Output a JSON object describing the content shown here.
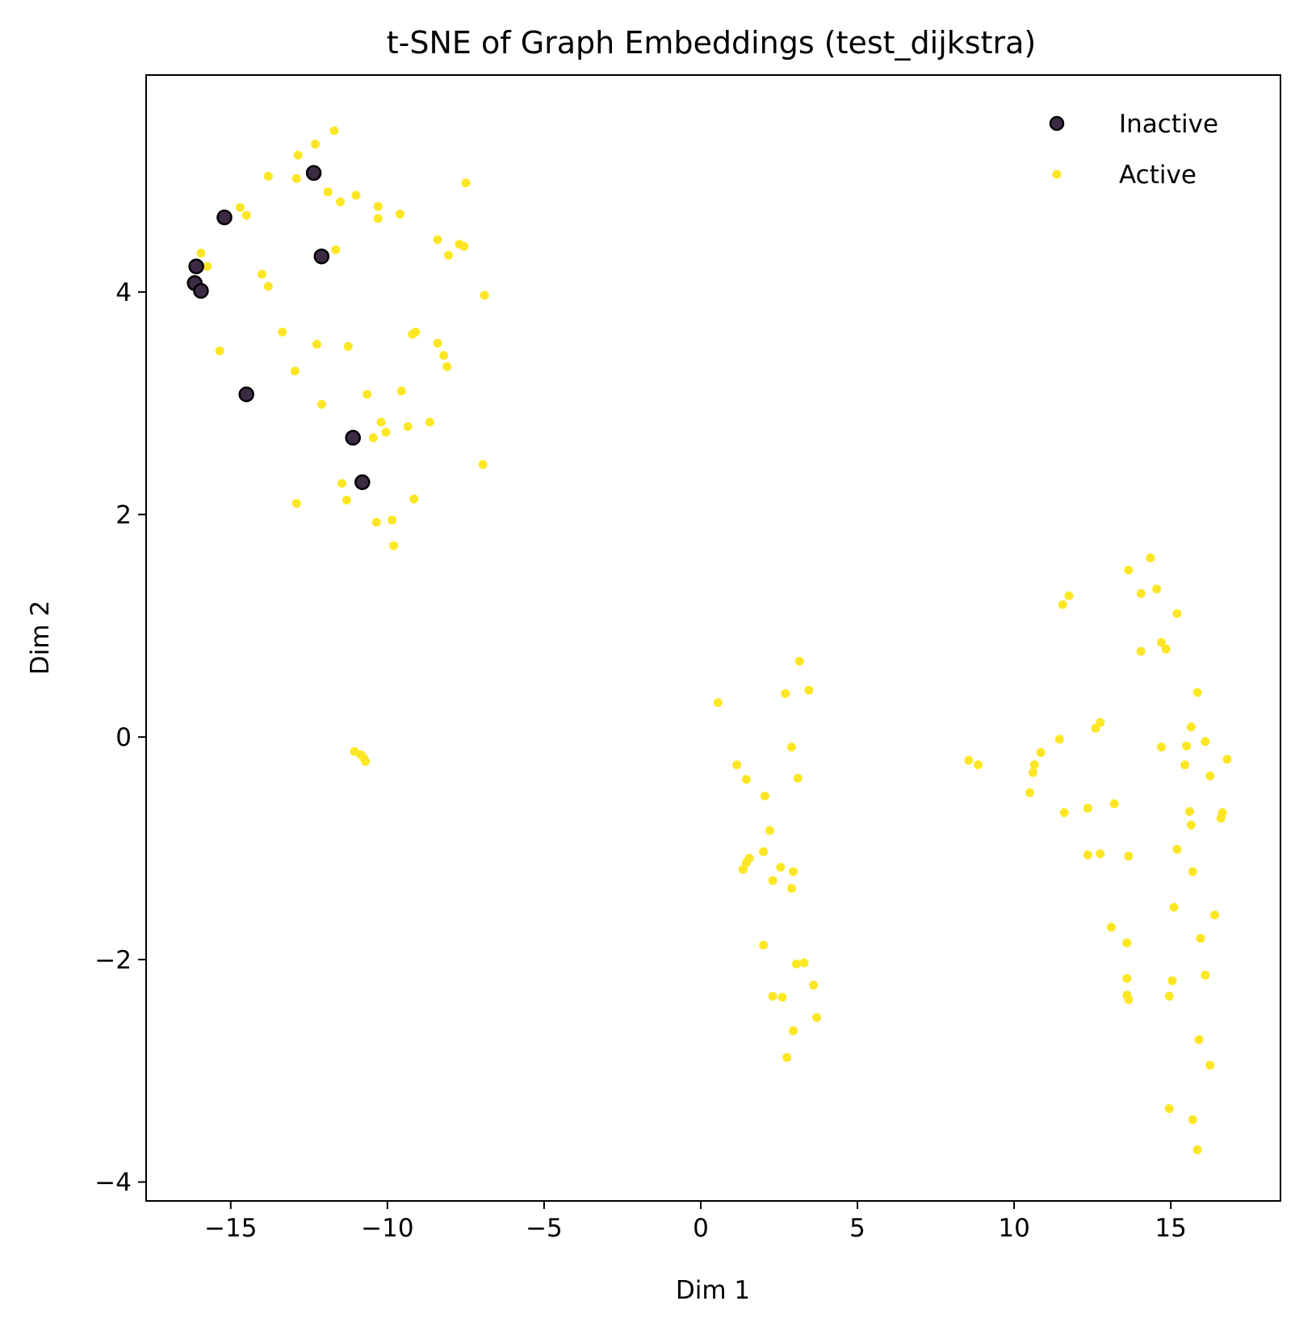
{
  "chart_data": {
    "type": "scatter",
    "title": "t-SNE of Graph Embeddings (test_dijkstra)",
    "xlabel": "Dim 1",
    "ylabel": "Dim 2",
    "xlim": [
      -17.7,
      18.5
    ],
    "ylim": [
      -4.17,
      5.95
    ],
    "xticks": [
      -15,
      -10,
      -5,
      0,
      5,
      10,
      15
    ],
    "xtick_labels": [
      "−15",
      "−10",
      "−5",
      "0",
      "5",
      "10",
      "15"
    ],
    "yticks": [
      -4,
      -2,
      0,
      2,
      4
    ],
    "ytick_labels": [
      "−4",
      "−2",
      "0",
      "2",
      "4"
    ],
    "grid": false,
    "legend_position": "top-right",
    "series": [
      {
        "name": "Inactive",
        "color": "#3d2a45",
        "edge_color": "#000000",
        "marker": "large-circle",
        "points": [
          [
            -15.2,
            4.67
          ],
          [
            -16.1,
            4.23
          ],
          [
            -16.15,
            4.08
          ],
          [
            -15.95,
            4.01
          ],
          [
            -14.5,
            3.08
          ],
          [
            -12.35,
            5.07
          ],
          [
            -12.1,
            4.32
          ],
          [
            -11.1,
            2.69
          ],
          [
            -10.8,
            2.29
          ]
        ]
      },
      {
        "name": "Active",
        "color": "#fde725",
        "marker": "small-circle",
        "points": [
          [
            -11.7,
            5.45
          ],
          [
            -12.3,
            5.33
          ],
          [
            -12.85,
            5.23
          ],
          [
            -13.8,
            5.04
          ],
          [
            -12.9,
            5.02
          ],
          [
            -7.5,
            4.98
          ],
          [
            -11.9,
            4.9
          ],
          [
            -11,
            4.87
          ],
          [
            -11.5,
            4.81
          ],
          [
            -14.7,
            4.76
          ],
          [
            -10.3,
            4.77
          ],
          [
            -14.5,
            4.69
          ],
          [
            -9.6,
            4.7
          ],
          [
            -10.3,
            4.66
          ],
          [
            -8.4,
            4.47
          ],
          [
            -7.7,
            4.43
          ],
          [
            -7.55,
            4.41
          ],
          [
            -11.65,
            4.38
          ],
          [
            -15.95,
            4.35
          ],
          [
            -8.05,
            4.33
          ],
          [
            -15.75,
            4.23
          ],
          [
            -14,
            4.16
          ],
          [
            -13.8,
            4.05
          ],
          [
            -6.9,
            3.97
          ],
          [
            -13.35,
            3.64
          ],
          [
            -9.1,
            3.64
          ],
          [
            -9.2,
            3.62
          ],
          [
            -12.25,
            3.53
          ],
          [
            -8.4,
            3.54
          ],
          [
            -11.25,
            3.51
          ],
          [
            -15.35,
            3.47
          ],
          [
            -8.2,
            3.43
          ],
          [
            -8.1,
            3.33
          ],
          [
            -12.95,
            3.29
          ],
          [
            -9.55,
            3.11
          ],
          [
            -10.65,
            3.08
          ],
          [
            -12.1,
            2.99
          ],
          [
            -10.2,
            2.83
          ],
          [
            -8.65,
            2.83
          ],
          [
            -9.35,
            2.79
          ],
          [
            -10.05,
            2.74
          ],
          [
            -10.45,
            2.69
          ],
          [
            -6.95,
            2.45
          ],
          [
            -11.45,
            2.28
          ],
          [
            -11.3,
            2.13
          ],
          [
            -9.15,
            2.14
          ],
          [
            -12.9,
            2.1
          ],
          [
            -9.85,
            1.95
          ],
          [
            -10.35,
            1.93
          ],
          [
            -9.8,
            1.72
          ],
          [
            -11.05,
            -0.13
          ],
          [
            -10.85,
            -0.16
          ],
          [
            -10.75,
            -0.19
          ],
          [
            -10.7,
            -0.22
          ],
          [
            3.15,
            0.68
          ],
          [
            3.45,
            0.42
          ],
          [
            2.7,
            0.39
          ],
          [
            0.55,
            0.31
          ],
          [
            2.9,
            -0.09
          ],
          [
            1.15,
            -0.25
          ],
          [
            3.1,
            -0.37
          ],
          [
            1.45,
            -0.38
          ],
          [
            2.05,
            -0.53
          ],
          [
            2.2,
            -0.84
          ],
          [
            2.0,
            -1.03
          ],
          [
            1.55,
            -1.09
          ],
          [
            1.45,
            -1.13
          ],
          [
            1.35,
            -1.19
          ],
          [
            2.55,
            -1.17
          ],
          [
            2.95,
            -1.21
          ],
          [
            2.3,
            -1.29
          ],
          [
            2.9,
            -1.36
          ],
          [
            2.0,
            -1.87
          ],
          [
            3.3,
            -2.03
          ],
          [
            3.05,
            -2.04
          ],
          [
            3.6,
            -2.23
          ],
          [
            2.3,
            -2.33
          ],
          [
            2.6,
            -2.34
          ],
          [
            3.7,
            -2.52
          ],
          [
            2.95,
            -2.64
          ],
          [
            2.75,
            -2.88
          ],
          [
            14.35,
            1.61
          ],
          [
            13.65,
            1.5
          ],
          [
            14.55,
            1.33
          ],
          [
            11.75,
            1.27
          ],
          [
            14.05,
            1.29
          ],
          [
            11.55,
            1.19
          ],
          [
            15.2,
            1.11
          ],
          [
            14.7,
            0.85
          ],
          [
            14.85,
            0.79
          ],
          [
            14.05,
            0.77
          ],
          [
            15.85,
            0.4
          ],
          [
            12.75,
            0.13
          ],
          [
            12.6,
            0.08
          ],
          [
            15.65,
            0.09
          ],
          [
            11.45,
            -0.02
          ],
          [
            16.1,
            -0.04
          ],
          [
            16.8,
            -0.2
          ],
          [
            14.7,
            -0.09
          ],
          [
            15.5,
            -0.08
          ],
          [
            10.85,
            -0.14
          ],
          [
            8.55,
            -0.21
          ],
          [
            8.85,
            -0.25
          ],
          [
            10.65,
            -0.25
          ],
          [
            10.6,
            -0.32
          ],
          [
            15.45,
            -0.25
          ],
          [
            16.25,
            -0.35
          ],
          [
            10.5,
            -0.5
          ],
          [
            13.2,
            -0.6
          ],
          [
            12.35,
            -0.64
          ],
          [
            11.6,
            -0.68
          ],
          [
            16.65,
            -0.68
          ],
          [
            16.6,
            -0.73
          ],
          [
            15.6,
            -0.67
          ],
          [
            15.65,
            -0.79
          ],
          [
            15.2,
            -1.01
          ],
          [
            12.35,
            -1.06
          ],
          [
            12.75,
            -1.05
          ],
          [
            13.65,
            -1.07
          ],
          [
            15.7,
            -1.21
          ],
          [
            15.1,
            -1.53
          ],
          [
            16.4,
            -1.6
          ],
          [
            13.1,
            -1.71
          ],
          [
            15.95,
            -1.81
          ],
          [
            13.6,
            -1.85
          ],
          [
            16.1,
            -2.14
          ],
          [
            13.6,
            -2.17
          ],
          [
            15.05,
            -2.19
          ],
          [
            13.6,
            -2.32
          ],
          [
            14.95,
            -2.33
          ],
          [
            13.65,
            -2.36
          ],
          [
            15.9,
            -2.72
          ],
          [
            16.25,
            -2.95
          ],
          [
            14.95,
            -3.34
          ],
          [
            15.7,
            -3.44
          ],
          [
            15.85,
            -3.71
          ]
        ]
      }
    ]
  }
}
